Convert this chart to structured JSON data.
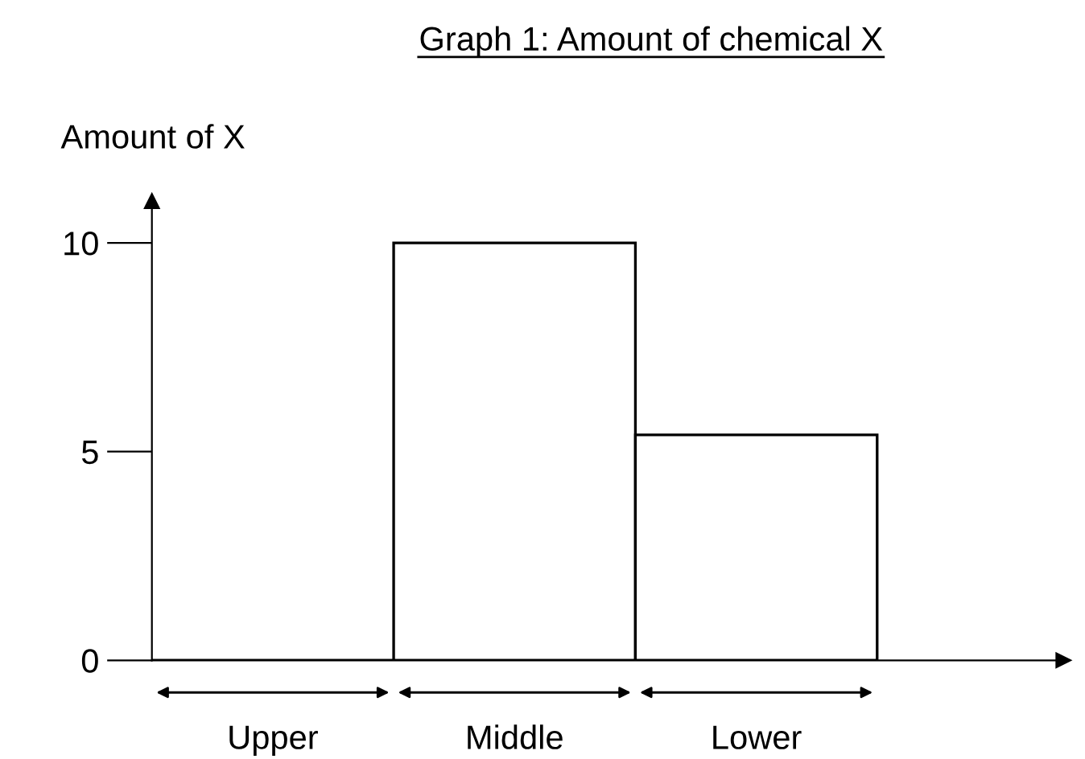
{
  "chart_data": {
    "type": "bar",
    "title": "Graph 1: Amount of chemical X",
    "ylabel": "Amount of X",
    "categories": [
      "Upper",
      "Middle",
      "Lower"
    ],
    "values": [
      0,
      10,
      5.4
    ],
    "color": "#ffffff",
    "ylim": [
      0,
      11
    ],
    "yticks": [
      0,
      5,
      10
    ],
    "grid": false
  }
}
